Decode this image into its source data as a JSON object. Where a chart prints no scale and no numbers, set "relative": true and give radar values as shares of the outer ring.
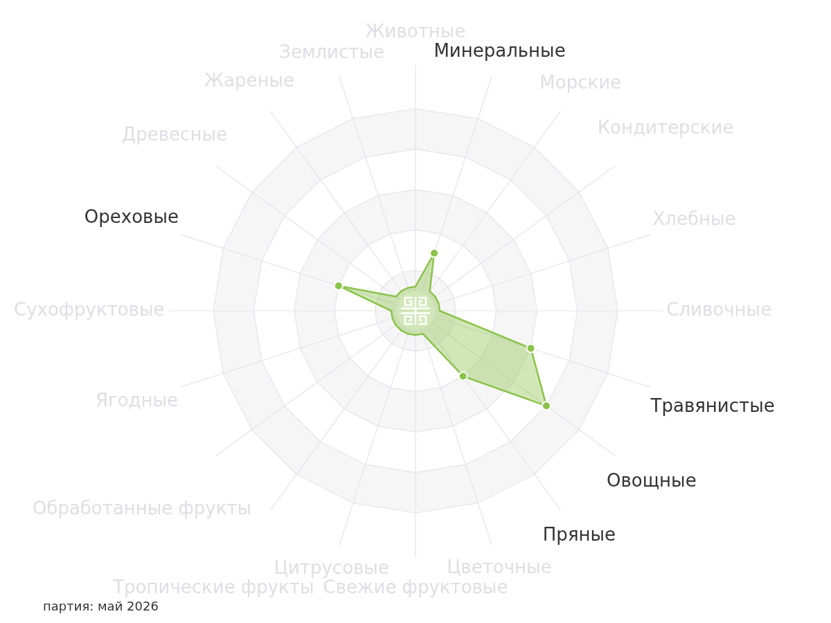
{
  "chart_data": {
    "type": "radar",
    "relative": true,
    "categories": [
      "Животные",
      "Минеральные",
      "Морские",
      "Кондитерские",
      "Хлебные",
      "Сливочные",
      "Травянистые",
      "Овощные",
      "Пряные",
      "Цветочные",
      "Свежие фруктовые",
      "Цитрусовые",
      "Тропические фрукты",
      "Обработанные фрукты",
      "Ягодные",
      "Сухофруктовые",
      "Ореховые",
      "Древесные",
      "Жареные",
      "Землистые"
    ],
    "series": [
      {
        "color": "#8bc34a",
        "values": [
          0.12,
          0.3,
          0.12,
          0.12,
          0.12,
          0.12,
          0.6,
          0.8,
          0.4,
          0.12,
          0.12,
          0.12,
          0.12,
          0.12,
          0.12,
          0.12,
          0.4,
          0.12,
          0.12,
          0.12
        ]
      }
    ],
    "grid": true,
    "marker": "circle",
    "annotations": [
      "партия: май 2026"
    ]
  }
}
